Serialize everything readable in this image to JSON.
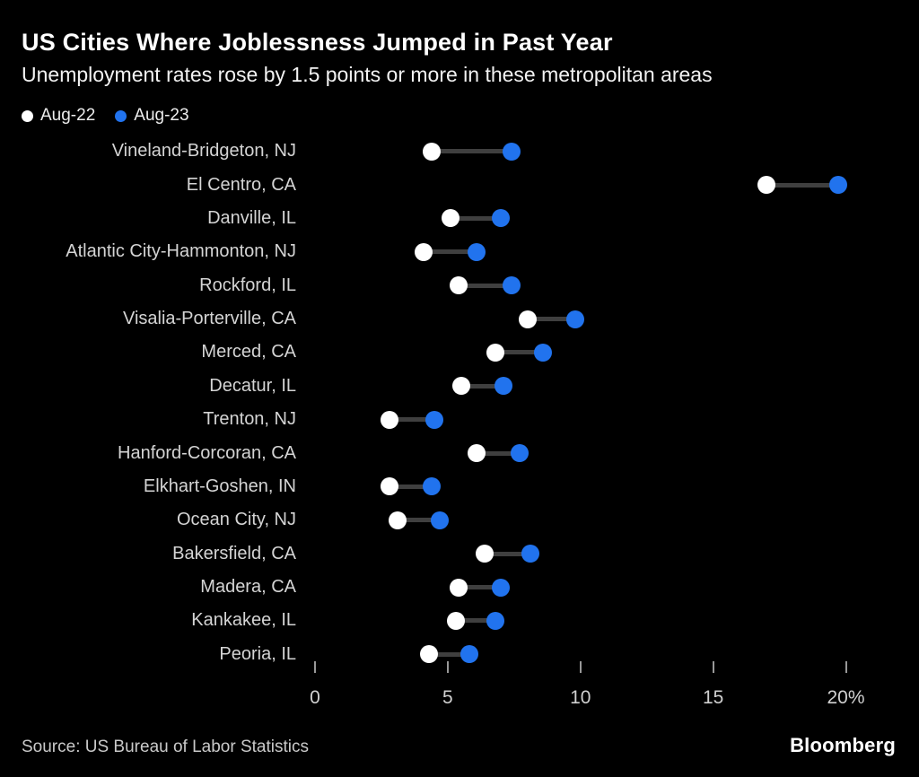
{
  "header": {
    "title": "US Cities Where Joblessness Jumped in Past Year",
    "subtitle": "Unemployment rates rose by 1.5 points or more in these metropolitan areas"
  },
  "legend": {
    "items": [
      {
        "label": "Aug-22",
        "color": "#ffffff"
      },
      {
        "label": "Aug-23",
        "color": "#2173ee"
      }
    ]
  },
  "chart_data": {
    "type": "dumbbell",
    "title": "US Cities Where Joblessness Jumped in Past Year",
    "subtitle": "Unemployment rates rose by 1.5 points or more in these metropolitan areas",
    "unit": "%",
    "xlim": [
      0,
      20
    ],
    "grid": false,
    "legend_position": "top-left",
    "categories": [
      "Vineland-Bridgeton, NJ",
      "El Centro, CA",
      "Danville, IL",
      "Atlantic City-Hammonton, NJ",
      "Rockford, IL",
      "Visalia-Porterville, CA",
      "Merced, CA",
      "Decatur, IL",
      "Trenton, NJ",
      "Hanford-Corcoran, CA",
      "Elkhart-Goshen, IN",
      "Ocean City, NJ",
      "Bakersfield, CA",
      "Madera, CA",
      "Kankakee, IL",
      "Peoria, IL"
    ],
    "series": [
      {
        "name": "Aug-22",
        "color": "#ffffff",
        "values": [
          4.4,
          17.0,
          5.1,
          4.1,
          5.4,
          8.0,
          6.8,
          5.5,
          2.8,
          6.1,
          2.8,
          3.1,
          6.4,
          5.4,
          5.3,
          4.3
        ]
      },
      {
        "name": "Aug-23",
        "color": "#2173ee",
        "values": [
          7.4,
          19.7,
          7.0,
          6.1,
          7.4,
          9.8,
          8.6,
          7.1,
          4.5,
          7.7,
          4.4,
          4.7,
          8.1,
          7.0,
          6.8,
          5.8
        ]
      }
    ],
    "x_ticks": [
      {
        "value": 0,
        "label": "0"
      },
      {
        "value": 5,
        "label": "5"
      },
      {
        "value": 10,
        "label": "10"
      },
      {
        "value": 15,
        "label": "15"
      },
      {
        "value": 20,
        "label": "20%"
      }
    ],
    "connector_color": "#3f3f3f"
  },
  "footer": {
    "source": "Source: US Bureau of Labor Statistics",
    "brand": "Bloomberg"
  }
}
